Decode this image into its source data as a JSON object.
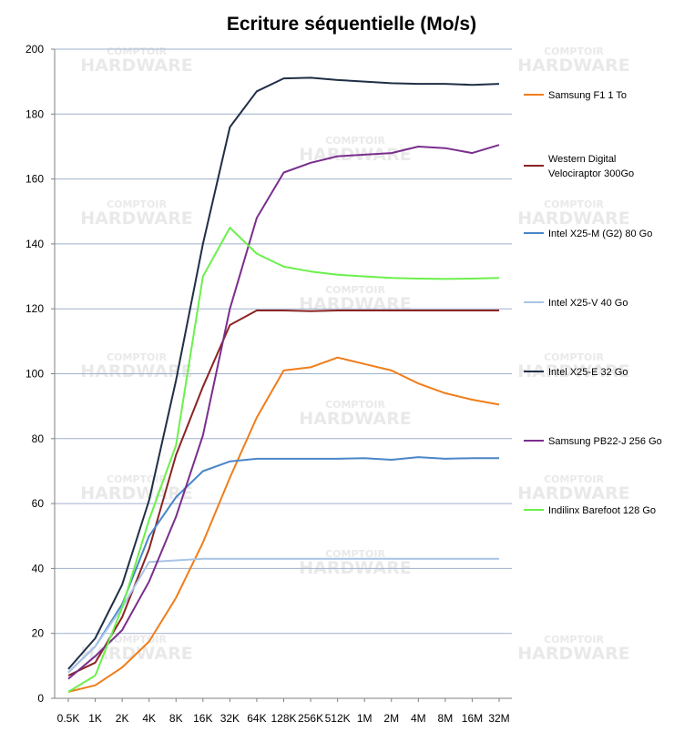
{
  "chart_data": {
    "type": "line",
    "title": "Ecriture séquentielle (Mo/s)",
    "watermark": [
      "COMPTOIR",
      "HARDWARE"
    ],
    "categories": [
      "0.5K",
      "1K",
      "2K",
      "4K",
      "8K",
      "16K",
      "32K",
      "64K",
      "128K",
      "256K",
      "512K",
      "1M",
      "2M",
      "4M",
      "8M",
      "16M",
      "32M"
    ],
    "ylim": [
      0,
      200
    ],
    "yticks": [
      0,
      20,
      40,
      60,
      80,
      100,
      120,
      140,
      160,
      180,
      200
    ],
    "grid": true,
    "legend_position": "right",
    "series": [
      {
        "name": "Samsung F1 1 To",
        "color": "#f07d1a",
        "values": [
          2,
          4,
          9.5,
          17.5,
          31,
          48,
          68,
          86.5,
          101,
          102,
          105,
          103,
          101,
          97,
          94,
          92,
          90.5
        ]
      },
      {
        "name": "Western Digital Velociraptor 300Go",
        "color": "#8b2323",
        "values": [
          7,
          11,
          25,
          46,
          75,
          96,
          115,
          119.5,
          119.5,
          119.3,
          119.5,
          119.5,
          119.5,
          119.5,
          119.5,
          119.5,
          119.5
        ]
      },
      {
        "name": "Intel X25-M (G2) 80 Go",
        "color": "#4a86c8",
        "values": [
          8,
          16,
          29,
          50,
          62,
          70,
          73,
          73.8,
          73.8,
          73.8,
          73.8,
          74,
          73.5,
          74.3,
          73.8,
          74,
          74
        ]
      },
      {
        "name": "Intel X25-V 40 Go",
        "color": "#a9c4e6",
        "values": [
          8,
          16,
          28,
          42,
          42.5,
          43,
          43,
          43,
          43,
          43,
          43,
          43,
          43,
          43,
          43,
          43,
          43
        ]
      },
      {
        "name": "Intel X25-E 32 Go",
        "color": "#1f2f45",
        "values": [
          9,
          18.5,
          35,
          61,
          98,
          140,
          176,
          187,
          191,
          191.2,
          190.5,
          190,
          189.5,
          189.3,
          189.3,
          189,
          189.3
        ]
      },
      {
        "name": "Samsung PB22-J 256 Go",
        "color": "#7a2e8c",
        "values": [
          6,
          13,
          21,
          36,
          56,
          81,
          120,
          148,
          162,
          165,
          167,
          167.5,
          168,
          170,
          169.5,
          168,
          170.5
        ]
      },
      {
        "name": "Indilinx Barefoot 128 Go",
        "color": "#6bf04b",
        "values": [
          2,
          7,
          28,
          55,
          78,
          130,
          145,
          137,
          133,
          131.5,
          130.5,
          130,
          129.5,
          129.3,
          129.2,
          129.3,
          129.5
        ]
      }
    ]
  }
}
